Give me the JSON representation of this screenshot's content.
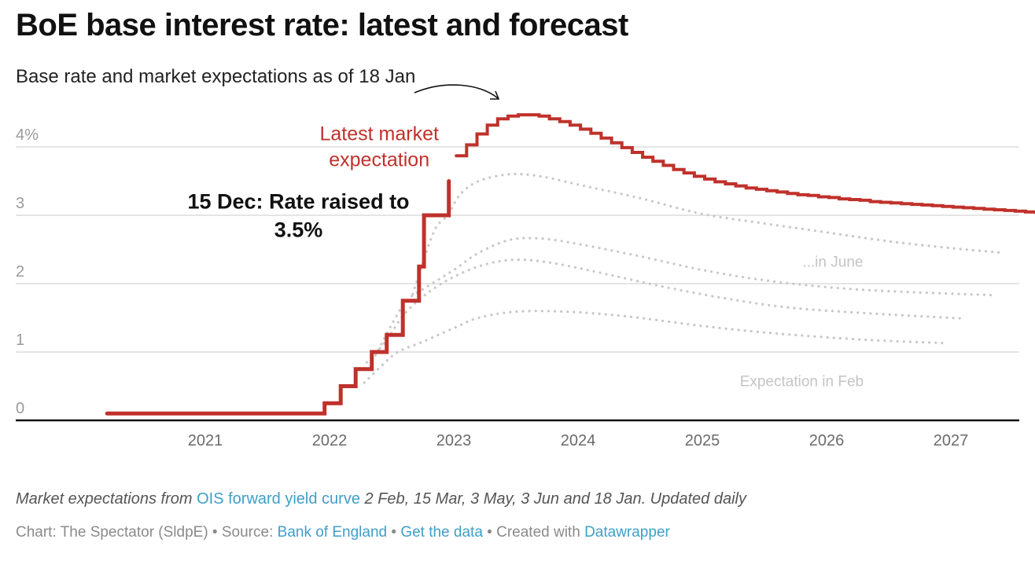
{
  "header": {
    "title": "BoE base interest rate: latest and forecast",
    "subtitle": "Base rate and market expectations as of 18 Jan"
  },
  "chart_data": {
    "type": "line",
    "title": "BoE base interest rate: latest and forecast",
    "subtitle": "Base rate and market expectations as of 18 Jan",
    "xlabel": "",
    "ylabel": "",
    "xlim": [
      2020.2,
      2027.55
    ],
    "ylim": [
      0,
      4.5
    ],
    "grid": true,
    "x_ticks": [
      2021,
      2022,
      2023,
      2024,
      2025,
      2026,
      2027
    ],
    "x_tick_labels": [
      "2021",
      "2022",
      "2023",
      "2024",
      "2025",
      "2026",
      "2027"
    ],
    "y_ticks": [
      0,
      1,
      2,
      3,
      4
    ],
    "y_tick_labels": [
      "0",
      "1",
      "2",
      "3",
      "4%"
    ],
    "colors": {
      "base_rate": "#c0312b",
      "latest_expectation": "#c0312b",
      "past_expectation": "#c8c8c8",
      "grid": "#e5e5e5",
      "axis": "#111111"
    },
    "series": [
      {
        "name": "Base rate",
        "style": "step-solid",
        "points": [
          [
            2020.21,
            0.1
          ],
          [
            2021.96,
            0.1
          ],
          [
            2021.96,
            0.25
          ],
          [
            2022.09,
            0.25
          ],
          [
            2022.09,
            0.5
          ],
          [
            2022.21,
            0.5
          ],
          [
            2022.21,
            0.75
          ],
          [
            2022.34,
            0.75
          ],
          [
            2022.34,
            1.0
          ],
          [
            2022.46,
            1.0
          ],
          [
            2022.46,
            1.25
          ],
          [
            2022.59,
            1.25
          ],
          [
            2022.59,
            1.75
          ],
          [
            2022.72,
            1.75
          ],
          [
            2022.72,
            2.25
          ],
          [
            2022.76,
            2.25
          ],
          [
            2022.76,
            3.0
          ],
          [
            2022.96,
            3.0
          ],
          [
            2022.96,
            3.5
          ]
        ]
      },
      {
        "name": "Latest market expectation (18 Jan)",
        "style": "step-solid",
        "x_start": 2023.02,
        "step": 0.0833,
        "values": [
          3.87,
          4.03,
          4.19,
          4.32,
          4.41,
          4.45,
          4.47,
          4.47,
          4.45,
          4.41,
          4.37,
          4.32,
          4.26,
          4.2,
          4.13,
          4.06,
          3.99,
          3.92,
          3.85,
          3.79,
          3.73,
          3.67,
          3.62,
          3.57,
          3.53,
          3.49,
          3.46,
          3.43,
          3.4,
          3.38,
          3.36,
          3.34,
          3.32,
          3.3,
          3.29,
          3.27,
          3.26,
          3.24,
          3.23,
          3.22,
          3.2,
          3.19,
          3.18,
          3.17,
          3.16,
          3.15,
          3.14,
          3.13,
          3.12,
          3.11,
          3.1,
          3.09,
          3.08,
          3.07,
          3.06,
          3.05,
          3.04
        ]
      },
      {
        "name": "Expectation 3 Jun",
        "label": "...in June",
        "style": "dotted",
        "points": [
          [
            2022.67,
            1.85
          ],
          [
            2022.75,
            2.3
          ],
          [
            2022.85,
            2.8
          ],
          [
            2022.95,
            3.0
          ],
          [
            2023.05,
            3.3
          ],
          [
            2023.2,
            3.5
          ],
          [
            2023.45,
            3.6
          ],
          [
            2023.7,
            3.57
          ],
          [
            2024.0,
            3.45
          ],
          [
            2024.5,
            3.25
          ],
          [
            2025.0,
            3.02
          ],
          [
            2025.5,
            2.88
          ],
          [
            2026.0,
            2.75
          ],
          [
            2026.5,
            2.62
          ],
          [
            2027.0,
            2.52
          ],
          [
            2027.43,
            2.45
          ]
        ]
      },
      {
        "name": "Expectation 3 May",
        "style": "dotted",
        "points": [
          [
            2022.37,
            0.95
          ],
          [
            2022.5,
            1.4
          ],
          [
            2022.62,
            1.75
          ],
          [
            2022.78,
            1.95
          ],
          [
            2023.0,
            2.2
          ],
          [
            2023.2,
            2.45
          ],
          [
            2023.45,
            2.64
          ],
          [
            2023.7,
            2.66
          ],
          [
            2024.0,
            2.58
          ],
          [
            2024.5,
            2.4
          ],
          [
            2025.0,
            2.2
          ],
          [
            2025.5,
            2.05
          ],
          [
            2026.0,
            1.95
          ],
          [
            2026.5,
            1.89
          ],
          [
            2027.36,
            1.83
          ]
        ]
      },
      {
        "name": "Expectation 15 Mar",
        "style": "dotted",
        "points": [
          [
            2022.3,
            0.85
          ],
          [
            2022.45,
            1.15
          ],
          [
            2022.6,
            1.55
          ],
          [
            2022.78,
            1.85
          ],
          [
            2023.0,
            2.1
          ],
          [
            2023.25,
            2.28
          ],
          [
            2023.5,
            2.35
          ],
          [
            2023.8,
            2.3
          ],
          [
            2024.2,
            2.15
          ],
          [
            2024.7,
            1.95
          ],
          [
            2025.2,
            1.78
          ],
          [
            2025.7,
            1.65
          ],
          [
            2026.3,
            1.57
          ],
          [
            2027.1,
            1.49
          ]
        ]
      },
      {
        "name": "Expectation 2 Feb",
        "label": "Expectation in Feb",
        "style": "dotted",
        "points": [
          [
            2022.28,
            0.55
          ],
          [
            2022.42,
            0.8
          ],
          [
            2022.55,
            1.0
          ],
          [
            2022.75,
            1.15
          ],
          [
            2023.0,
            1.35
          ],
          [
            2023.2,
            1.5
          ],
          [
            2023.5,
            1.59
          ],
          [
            2023.9,
            1.59
          ],
          [
            2024.4,
            1.52
          ],
          [
            2025.0,
            1.38
          ],
          [
            2025.6,
            1.27
          ],
          [
            2026.3,
            1.18
          ],
          [
            2026.95,
            1.13
          ]
        ]
      }
    ],
    "annotations": [
      {
        "text_lines": [
          "Latest market",
          "expectation"
        ],
        "x": 2022.4,
        "y": 4.1,
        "color": "#c0312b"
      },
      {
        "text_lines": [
          "15 Dec: Rate raised to",
          "3.5%"
        ],
        "x": 2021.75,
        "y": 3.1,
        "color": "#111111",
        "bold": true
      },
      {
        "text_lines": [
          "...in June"
        ],
        "x": 2026.05,
        "y": 2.25,
        "color": "#c4c4c4"
      },
      {
        "text_lines": [
          "Expectation in Feb"
        ],
        "x": 2025.8,
        "y": 0.5,
        "color": "#c4c4c4"
      }
    ]
  },
  "footer": {
    "notes_prefix": "Market expectations from ",
    "notes_link": "OIS forward yield curve",
    "notes_suffix": " 2 Feb, 15 Mar, 3 May, 3 Jun and 18 Jan. Updated daily",
    "byline_chart": "Chart: The Spectator (SldpE)",
    "separator": " • ",
    "source_label": "Source: ",
    "source_link": "Bank of England",
    "get_data_link": "Get the data",
    "created_with": "Created with ",
    "datawrapper_link": "Datawrapper"
  }
}
